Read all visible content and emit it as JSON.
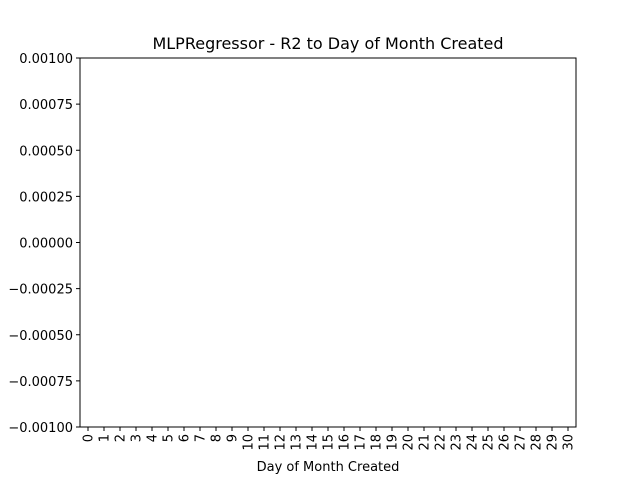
{
  "chart_data": {
    "type": "bar",
    "title": "MLPRegressor - R2 to Day of Month Created",
    "xlabel": "Day of Month Created",
    "ylabel": "",
    "categories": [
      "0",
      "1",
      "2",
      "3",
      "4",
      "5",
      "6",
      "7",
      "8",
      "9",
      "10",
      "11",
      "12",
      "13",
      "14",
      "15",
      "16",
      "17",
      "18",
      "19",
      "20",
      "21",
      "22",
      "23",
      "24",
      "25",
      "26",
      "27",
      "28",
      "29",
      "30"
    ],
    "values": [
      0,
      0,
      0,
      0,
      0,
      0,
      0,
      0,
      0,
      0,
      0,
      0,
      0,
      0,
      0,
      0,
      0,
      0,
      0,
      0,
      0,
      0,
      0,
      0,
      0,
      0,
      0,
      0,
      0,
      0,
      0
    ],
    "ylim": [
      -0.001,
      0.001
    ],
    "yticks": [
      "0.00100",
      "0.00075",
      "0.00050",
      "0.00025",
      "0.00000",
      "−0.00025",
      "−0.00050",
      "−0.00075",
      "−0.00100"
    ],
    "ytick_values": [
      0.001,
      0.00075,
      0.0005,
      0.00025,
      0,
      -0.00025,
      -0.0005,
      -0.00075,
      -0.001
    ],
    "grid": false,
    "legend": "none"
  }
}
